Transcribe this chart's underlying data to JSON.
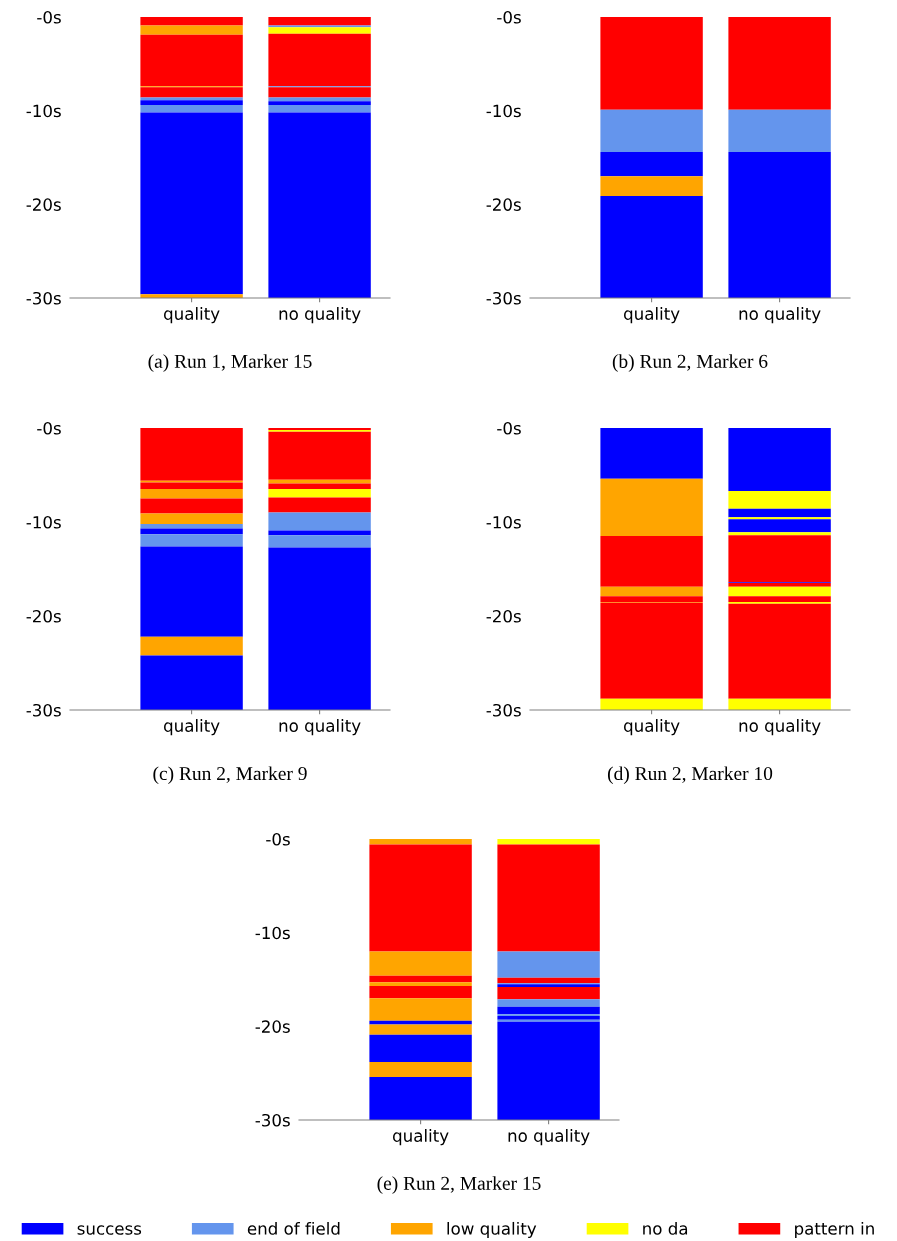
{
  "chart_data": [
    {
      "type": "bar",
      "stacked": true,
      "title": "(a) Run 1, Marker 15",
      "categories": [
        "quality",
        "no quality"
      ],
      "ylim": [
        -30,
        0
      ],
      "yticks": [
        {
          "value": 0,
          "label": "-0s"
        },
        {
          "value": -10,
          "label": "-10s"
        },
        {
          "value": -20,
          "label": "-20s"
        },
        {
          "value": -30,
          "label": "-30s"
        }
      ],
      "series": [
        {
          "color": "#ff0000",
          "values": [
            -0.9,
            null
          ]
        },
        {
          "color": "#ffa500",
          "values": [
            -1.0,
            null
          ]
        },
        {
          "color": "#ff0000",
          "values": [
            -5.5,
            null
          ]
        },
        {
          "color": "#ffa500",
          "values": [
            -0.1,
            null
          ]
        },
        {
          "color": "#ff0000",
          "values": [
            -1.1,
            null
          ]
        },
        {
          "color": "#6495ed",
          "values": [
            -0.3,
            null
          ]
        },
        {
          "color": "#0000ff",
          "values": [
            -0.5,
            null
          ]
        },
        {
          "color": "#6495ed",
          "values": [
            -0.8,
            null
          ]
        },
        {
          "color": "#0000ff",
          "values": [
            -19.4,
            null
          ]
        },
        {
          "color": "#ffa500",
          "values": [
            -0.4,
            null
          ]
        },
        {
          "color": "#ff0000",
          "values": [
            null,
            -0.9
          ]
        },
        {
          "color": "#6495ed",
          "values": [
            null,
            -0.2
          ]
        },
        {
          "color": "#ffff00",
          "values": [
            null,
            -0.7
          ]
        },
        {
          "color": "#ff0000",
          "values": [
            null,
            -5.6
          ]
        },
        {
          "color": "#6495ed",
          "values": [
            null,
            -0.1
          ]
        },
        {
          "color": "#ff0000",
          "values": [
            null,
            -1.1
          ]
        },
        {
          "color": "#6495ed",
          "values": [
            null,
            -0.4
          ]
        },
        {
          "color": "#0000ff",
          "values": [
            null,
            -0.4
          ]
        },
        {
          "color": "#6495ed",
          "values": [
            null,
            -0.8
          ]
        },
        {
          "color": "#0000ff",
          "values": [
            null,
            -19.8
          ]
        }
      ]
    },
    {
      "type": "bar",
      "stacked": true,
      "title": "(b) Run 2, Marker 6",
      "categories": [
        "quality",
        "no quality"
      ],
      "ylim": [
        -30,
        0
      ],
      "yticks": [
        {
          "value": 0,
          "label": "-0s"
        },
        {
          "value": -10,
          "label": "-10s"
        },
        {
          "value": -20,
          "label": "-20s"
        },
        {
          "value": -30,
          "label": "-30s"
        }
      ],
      "series": [
        {
          "color": "#ff0000",
          "values": [
            -9.9,
            null
          ]
        },
        {
          "color": "#6495ed",
          "values": [
            -4.5,
            null
          ]
        },
        {
          "color": "#0000ff",
          "values": [
            -2.6,
            null
          ]
        },
        {
          "color": "#ffa500",
          "values": [
            -2.1,
            null
          ]
        },
        {
          "color": "#0000ff",
          "values": [
            -10.9,
            null
          ]
        },
        {
          "color": "#ff0000",
          "values": [
            null,
            -9.9
          ]
        },
        {
          "color": "#6495ed",
          "values": [
            null,
            -4.5
          ]
        },
        {
          "color": "#0000ff",
          "values": [
            null,
            -15.6
          ]
        }
      ]
    },
    {
      "type": "bar",
      "stacked": true,
      "title": "(c) Run 2, Marker 9",
      "categories": [
        "quality",
        "no quality"
      ],
      "ylim": [
        -30,
        0
      ],
      "yticks": [
        {
          "value": 0,
          "label": "-0s"
        },
        {
          "value": -10,
          "label": "-10s"
        },
        {
          "value": -20,
          "label": "-20s"
        },
        {
          "value": -30,
          "label": "-30s"
        }
      ],
      "series": [
        {
          "color": "#ff0000",
          "values": [
            -5.6,
            null
          ]
        },
        {
          "color": "#ffa500",
          "values": [
            -0.2,
            null
          ]
        },
        {
          "color": "#ff0000",
          "values": [
            -0.7,
            null
          ]
        },
        {
          "color": "#ffa500",
          "values": [
            -1.0,
            null
          ]
        },
        {
          "color": "#ff0000",
          "values": [
            -1.6,
            null
          ]
        },
        {
          "color": "#ffa500",
          "values": [
            -1.1,
            null
          ]
        },
        {
          "color": "#6495ed",
          "values": [
            -0.5,
            null
          ]
        },
        {
          "color": "#0000ff",
          "values": [
            -0.6,
            null
          ]
        },
        {
          "color": "#6495ed",
          "values": [
            -1.3,
            null
          ]
        },
        {
          "color": "#0000ff",
          "values": [
            -9.6,
            null
          ]
        },
        {
          "color": "#ffa500",
          "values": [
            -2.0,
            null
          ]
        },
        {
          "color": "#0000ff",
          "values": [
            -5.8,
            null
          ]
        },
        {
          "color": "#ff0000",
          "values": [
            null,
            -0.2
          ]
        },
        {
          "color": "#ffff00",
          "values": [
            null,
            -0.2
          ]
        },
        {
          "color": "#ff0000",
          "values": [
            null,
            -5.1
          ]
        },
        {
          "color": "#ffa500",
          "values": [
            null,
            -0.4
          ]
        },
        {
          "color": "#ff0000",
          "values": [
            null,
            -0.6
          ]
        },
        {
          "color": "#ffff00",
          "values": [
            null,
            -0.9
          ]
        },
        {
          "color": "#ff0000",
          "values": [
            null,
            -1.6
          ]
        },
        {
          "color": "#6495ed",
          "values": [
            null,
            -1.9
          ]
        },
        {
          "color": "#0000ff",
          "values": [
            null,
            -0.5
          ]
        },
        {
          "color": "#6495ed",
          "values": [
            null,
            -1.3
          ]
        },
        {
          "color": "#0000ff",
          "values": [
            null,
            -17.3
          ]
        }
      ]
    },
    {
      "type": "bar",
      "stacked": true,
      "title": "(d) Run 2, Marker 10",
      "categories": [
        "quality",
        "no quality"
      ],
      "ylim": [
        -30,
        0
      ],
      "yticks": [
        {
          "value": 0,
          "label": "-0s"
        },
        {
          "value": -10,
          "label": "-10s"
        },
        {
          "value": -20,
          "label": "-20s"
        },
        {
          "value": -30,
          "label": "-30s"
        }
      ],
      "series": [
        {
          "color": "#0000ff",
          "values": [
            -5.4,
            null
          ]
        },
        {
          "color": "#ffa500",
          "values": [
            -6.1,
            null
          ]
        },
        {
          "color": "#ff0000",
          "values": [
            -5.4,
            null
          ]
        },
        {
          "color": "#ffa500",
          "values": [
            -1.0,
            null
          ]
        },
        {
          "color": "#ff0000",
          "values": [
            -0.6,
            null
          ]
        },
        {
          "color": "#ffa500",
          "values": [
            -0.1,
            null
          ]
        },
        {
          "color": "#ff0000",
          "values": [
            -10.2,
            null
          ]
        },
        {
          "color": "#ffff00",
          "values": [
            -1.2,
            null
          ]
        },
        {
          "color": "#0000ff",
          "values": [
            null,
            -6.7
          ]
        },
        {
          "color": "#ffff00",
          "values": [
            null,
            -1.9
          ]
        },
        {
          "color": "#0000ff",
          "values": [
            null,
            -0.9
          ]
        },
        {
          "color": "#ffff00",
          "values": [
            null,
            -0.2
          ]
        },
        {
          "color": "#0000ff",
          "values": [
            null,
            -1.4
          ]
        },
        {
          "color": "#ffff00",
          "values": [
            null,
            -0.3
          ]
        },
        {
          "color": "#ff0000",
          "values": [
            null,
            -5.0
          ]
        },
        {
          "color": "#0000ff",
          "values": [
            null,
            -0.1
          ]
        },
        {
          "color": "#ff0000",
          "values": [
            null,
            -0.4
          ]
        },
        {
          "color": "#ffff00",
          "values": [
            null,
            -1.0
          ]
        },
        {
          "color": "#ff0000",
          "values": [
            null,
            -0.6
          ]
        },
        {
          "color": "#ffff00",
          "values": [
            null,
            -0.2
          ]
        },
        {
          "color": "#ff0000",
          "values": [
            null,
            -10.1
          ]
        },
        {
          "color": "#ffff00",
          "values": [
            null,
            -1.2
          ]
        }
      ]
    },
    {
      "type": "bar",
      "stacked": true,
      "title": "(e) Run 2, Marker 15",
      "categories": [
        "quality",
        "no quality"
      ],
      "ylim": [
        -30,
        0
      ],
      "yticks": [
        {
          "value": 0,
          "label": "-0s"
        },
        {
          "value": -10,
          "label": "-10s"
        },
        {
          "value": -20,
          "label": "-20s"
        },
        {
          "value": -30,
          "label": "-30s"
        }
      ],
      "series": [
        {
          "color": "#ffa500",
          "values": [
            -0.6,
            null
          ]
        },
        {
          "color": "#ff0000",
          "values": [
            -11.4,
            null
          ]
        },
        {
          "color": "#ffa500",
          "values": [
            -2.6,
            null
          ]
        },
        {
          "color": "#ff0000",
          "values": [
            -0.7,
            null
          ]
        },
        {
          "color": "#ffa500",
          "values": [
            -0.4,
            null
          ]
        },
        {
          "color": "#ff0000",
          "values": [
            -1.3,
            null
          ]
        },
        {
          "color": "#ffa500",
          "values": [
            -2.4,
            null
          ]
        },
        {
          "color": "#0000ff",
          "values": [
            -0.4,
            null
          ]
        },
        {
          "color": "#ffa500",
          "values": [
            -1.1,
            null
          ]
        },
        {
          "color": "#0000ff",
          "values": [
            -2.9,
            null
          ]
        },
        {
          "color": "#ffa500",
          "values": [
            -1.6,
            null
          ]
        },
        {
          "color": "#0000ff",
          "values": [
            -4.6,
            null
          ]
        },
        {
          "color": "#ffff00",
          "values": [
            null,
            -0.6
          ]
        },
        {
          "color": "#ff0000",
          "values": [
            null,
            -11.4
          ]
        },
        {
          "color": "#6495ed",
          "values": [
            null,
            -2.8
          ]
        },
        {
          "color": "#ff0000",
          "values": [
            null,
            -0.6
          ]
        },
        {
          "color": "#6495ed",
          "values": [
            null,
            -0.1
          ]
        },
        {
          "color": "#0000ff",
          "values": [
            null,
            -0.3
          ]
        },
        {
          "color": "#ff0000",
          "values": [
            null,
            -1.3
          ]
        },
        {
          "color": "#6495ed",
          "values": [
            null,
            -0.8
          ]
        },
        {
          "color": "#0000ff",
          "values": [
            null,
            -0.8
          ]
        },
        {
          "color": "#6495ed",
          "values": [
            null,
            -0.2
          ]
        },
        {
          "color": "#0000ff",
          "values": [
            null,
            -0.4
          ]
        },
        {
          "color": "#6495ed",
          "values": [
            null,
            -0.2
          ]
        },
        {
          "color": "#0000ff",
          "values": [
            null,
            -10.5
          ]
        }
      ]
    },
    {
      "type": "other",
      "legend": "bottom",
      "series": [
        {
          "name": "success",
          "color": "#0000ff"
        },
        {
          "name": "end of field",
          "color": "#6495ed"
        },
        {
          "name": "low quality",
          "color": "#ffa500"
        },
        {
          "name": "no da",
          "color": "#ffff00"
        },
        {
          "name": "pattern in",
          "color": "#ff0000"
        }
      ]
    }
  ]
}
